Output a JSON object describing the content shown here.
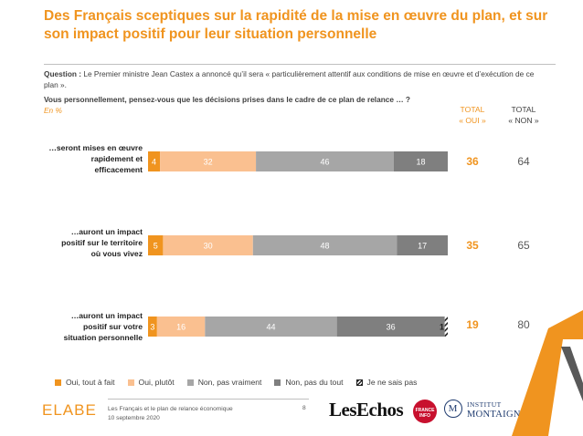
{
  "header": {
    "title": "Des Français sceptiques sur la rapidité de la mise en œuvre du plan, et sur son impact positif pour leur situation personnelle"
  },
  "question": {
    "prefix": "Question :",
    "text": " Le Premier ministre Jean Castex a annoncé qu’il sera « particulièrement attentif aux conditions de mise en œuvre et d’exécution de ce plan ».",
    "sub": "Vous personnellement, pensez-vous que les décisions prises dans le cadre de ce plan de relance … ?",
    "unit": "En %"
  },
  "totals_header": {
    "oui_l1": "TOTAL",
    "oui_l2": "« OUI »",
    "non_l1": "TOTAL",
    "non_l2": "« NON »"
  },
  "chart_data": {
    "type": "bar",
    "orientation": "horizontal",
    "stacked": true,
    "unit": "%",
    "categories": [
      "…seront mises en œuvre rapidement et efficacement",
      "…auront un impact positif sur le territoire où vous vivez",
      "…auront un impact positif sur votre situation personnelle"
    ],
    "category_lines": [
      [
        "…seront mises en œuvre",
        "rapidement et",
        "efficacement"
      ],
      [
        "…auront un impact",
        "positif sur le territoire",
        "où vous vivez"
      ],
      [
        "…auront un impact",
        "positif sur votre",
        "situation personnelle"
      ]
    ],
    "series": [
      {
        "name": "Oui, tout à fait",
        "color": "#f0941f",
        "values": [
          4,
          5,
          3
        ]
      },
      {
        "name": "Oui, plutôt",
        "color": "#fac090",
        "values": [
          32,
          30,
          16
        ]
      },
      {
        "name": "Non, pas vraiment",
        "color": "#a6a6a6",
        "values": [
          46,
          48,
          44
        ]
      },
      {
        "name": "Non, pas du tout",
        "color": "#7f7f7f",
        "values": [
          18,
          17,
          36
        ]
      },
      {
        "name": "Je ne sais pas",
        "color": "hatch",
        "values": [
          0,
          0,
          1
        ]
      }
    ],
    "data_labels": [
      [
        "4",
        "32",
        "46",
        "18",
        ""
      ],
      [
        "5",
        "30",
        "48",
        "17",
        ""
      ],
      [
        "3",
        "16",
        "44",
        "36",
        "1"
      ]
    ],
    "total_oui": [
      36,
      35,
      19
    ],
    "total_non": [
      64,
      65,
      80
    ],
    "xlim": [
      0,
      100
    ],
    "grid": false,
    "legend_position": "bottom"
  },
  "footer": {
    "brand": "ELABE",
    "source_l1": "Les Français et le plan de relance économique",
    "source_l2": "10 septembre 2020",
    "page": "8",
    "partner1": "LesEchos",
    "partner2": "FRANCE INFO",
    "partner3_mark": "M",
    "partner3_l1": "INSTITUT",
    "partner3_l2": "MONTAIGNE"
  },
  "colors": {
    "accent": "#f0941f",
    "accent_light": "#fac090",
    "grey_mid": "#a6a6a6",
    "grey_dark": "#7f7f7f"
  }
}
